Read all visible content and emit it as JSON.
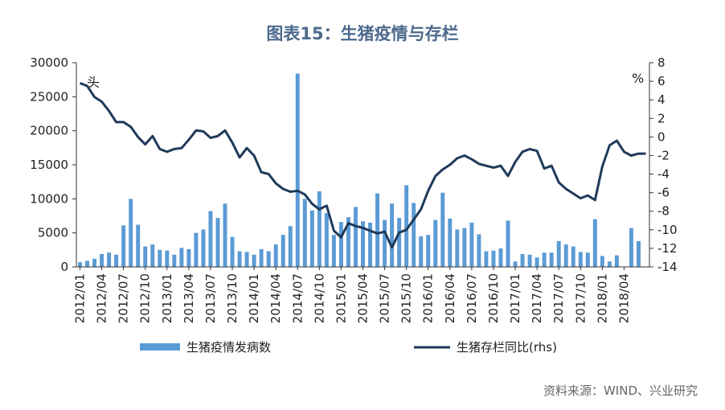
{
  "chart_data": {
    "type": "bar+line",
    "title": "图表15：生猪疫情与存栏",
    "left_unit": "头",
    "right_unit": "%",
    "source": "资料来源：WIND、兴业研究",
    "colors": {
      "bar": "#5b9bd5",
      "line": "#1f3a5a",
      "title": "#4d6a8c"
    },
    "ylim_left": [
      0,
      30000
    ],
    "yticks_left": [
      "0",
      "5000",
      "10000",
      "15000",
      "20000",
      "25000",
      "30000"
    ],
    "ylim_right": [
      -14,
      8
    ],
    "yticks_right": [
      "-14",
      "-12",
      "-10",
      "-8",
      "-6",
      "-4",
      "-2",
      "0",
      "2",
      "4",
      "6",
      "8"
    ],
    "x_tick_labels": [
      "2012/01",
      "2012/04",
      "2012/07",
      "2012/10",
      "2013/01",
      "2013/04",
      "2013/07",
      "2013/10",
      "2014/01",
      "2014/04",
      "2014/07",
      "2014/10",
      "2015/01",
      "2015/04",
      "2015/07",
      "2015/10",
      "2016/01",
      "2016/04",
      "2016/07",
      "2016/10",
      "2017/01",
      "2017/04",
      "2017/07",
      "2017/10",
      "2018/01",
      "2018/04"
    ],
    "x": [
      "2012/01",
      "2012/02",
      "2012/03",
      "2012/04",
      "2012/05",
      "2012/06",
      "2012/07",
      "2012/08",
      "2012/09",
      "2012/10",
      "2012/11",
      "2012/12",
      "2013/01",
      "2013/02",
      "2013/03",
      "2013/04",
      "2013/05",
      "2013/06",
      "2013/07",
      "2013/08",
      "2013/09",
      "2013/10",
      "2013/11",
      "2013/12",
      "2014/01",
      "2014/02",
      "2014/03",
      "2014/04",
      "2014/05",
      "2014/06",
      "2014/07",
      "2014/08",
      "2014/09",
      "2014/10",
      "2014/11",
      "2014/12",
      "2015/01",
      "2015/02",
      "2015/03",
      "2015/04",
      "2015/05",
      "2015/06",
      "2015/07",
      "2015/08",
      "2015/09",
      "2015/10",
      "2015/11",
      "2015/12",
      "2016/01",
      "2016/02",
      "2016/03",
      "2016/04",
      "2016/05",
      "2016/06",
      "2016/07",
      "2016/08",
      "2016/09",
      "2016/10",
      "2016/11",
      "2016/12",
      "2017/01",
      "2017/02",
      "2017/03",
      "2017/04",
      "2017/05",
      "2017/06",
      "2017/07",
      "2017/08",
      "2017/09",
      "2017/10",
      "2017/11",
      "2017/12",
      "2018/01",
      "2018/02",
      "2018/03",
      "2018/04",
      "2018/05",
      "2018/06",
      "2018/07"
    ],
    "series": [
      {
        "name": "生猪疫情发病数",
        "type": "bar",
        "axis": "left",
        "values": [
          700,
          900,
          1200,
          1900,
          2100,
          1800,
          6100,
          10000,
          6200,
          3000,
          3300,
          2500,
          2400,
          1800,
          2800,
          2600,
          5000,
          5500,
          8200,
          7200,
          9300,
          4400,
          2300,
          2200,
          1800,
          2600,
          2300,
          3300,
          4700,
          6000,
          28400,
          10000,
          8300,
          11100,
          7900,
          4700,
          6600,
          7300,
          8800,
          6700,
          6500,
          10800,
          6900,
          9300,
          7200,
          12000,
          9400,
          4500,
          4700,
          6900,
          10900,
          7100,
          5500,
          5700,
          6500,
          4800,
          2300,
          2400,
          2700,
          6800,
          800,
          1900,
          1800,
          1400,
          2100,
          2100,
          3800,
          3300,
          3000,
          2200,
          2100,
          7000,
          1600,
          800,
          1700,
          0,
          5700,
          3800,
          0
        ]
      },
      {
        "name": "生猪存栏同比(rhs)",
        "type": "line",
        "axis": "right",
        "values": [
          5.8,
          5.5,
          4.3,
          3.8,
          2.8,
          1.6,
          1.6,
          1.1,
          0.0,
          -0.8,
          0.1,
          -1.3,
          -1.6,
          -1.3,
          -1.2,
          -0.3,
          0.7,
          0.6,
          -0.1,
          0.1,
          0.7,
          -0.6,
          -2.2,
          -1.2,
          -2.0,
          -3.8,
          -4.0,
          -5.0,
          -5.6,
          -5.9,
          -5.8,
          -6.2,
          -7.2,
          -7.8,
          -7.4,
          -10.1,
          -10.8,
          -9.3,
          -9.6,
          -9.8,
          -10.1,
          -10.4,
          -10.2,
          -11.9,
          -10.3,
          -10.0,
          -8.9,
          -7.8,
          -5.8,
          -4.2,
          -3.5,
          -3.0,
          -2.3,
          -2.0,
          -2.4,
          -2.9,
          -3.1,
          -3.3,
          -3.1,
          -4.2,
          -2.7,
          -1.6,
          -1.3,
          -1.5,
          -3.4,
          -3.1,
          -4.9,
          -5.6,
          -6.1,
          -6.6,
          -6.3,
          -6.8,
          -3.2,
          -0.9,
          -0.4,
          -1.6,
          -2.0,
          -1.8,
          -1.8
        ]
      }
    ]
  }
}
